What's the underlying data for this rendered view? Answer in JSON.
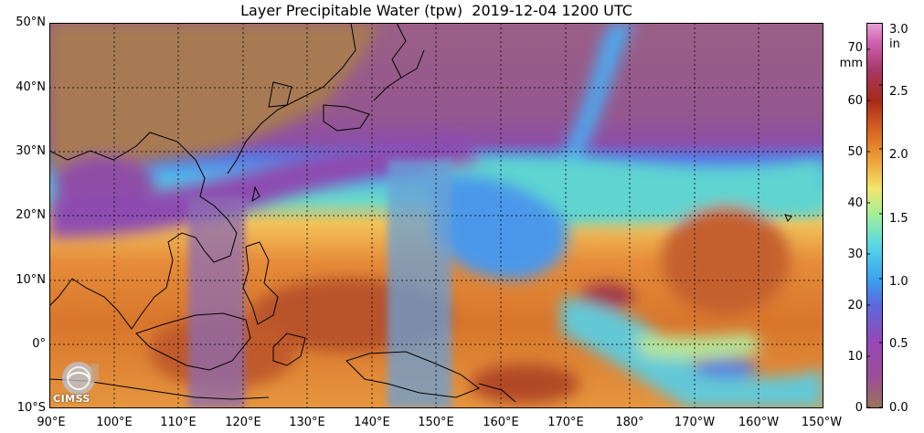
{
  "title": "Layer Precipitable Water (tpw)  2019-12-04 1200 UTC",
  "lat_labels": [
    "50°N",
    "40°N",
    "30°N",
    "20°N",
    "10°N",
    "0°",
    "10°S"
  ],
  "lon_labels": [
    "90°E",
    "100°E",
    "110°E",
    "120°E",
    "130°E",
    "140°E",
    "150°E",
    "160°E",
    "170°E",
    "180°",
    "170°W",
    "160°W",
    "150°W"
  ],
  "colorbar": {
    "mm_ticks": [
      "0",
      "10",
      "20",
      "30",
      "40",
      "50",
      "60",
      "70"
    ],
    "mm_unit": "mm",
    "in_ticks": [
      "0.0",
      "0.5",
      "1.0",
      "1.5",
      "2.0",
      "2.5",
      "3.0"
    ],
    "in_unit": "in",
    "colors": [
      "#9a7355",
      "#9b4e98",
      "#9747b5",
      "#5a6ae0",
      "#3a9ef0",
      "#55d6e6",
      "#9ef09a",
      "#f2e66a",
      "#f0a43a",
      "#d86420",
      "#a82a18",
      "#a83868",
      "#d060b0",
      "#e8a0d8"
    ]
  },
  "map_colors": {
    "dry_north": "#9b5a86",
    "continent": "#a77a52",
    "moist_band": "#4fb6ec",
    "cyan": "#5ad6d6",
    "wet": "#e88838",
    "very_wet": "#b84c24",
    "coast": "#000000",
    "grid": "#000000"
  },
  "logo_text": "CIMSS"
}
